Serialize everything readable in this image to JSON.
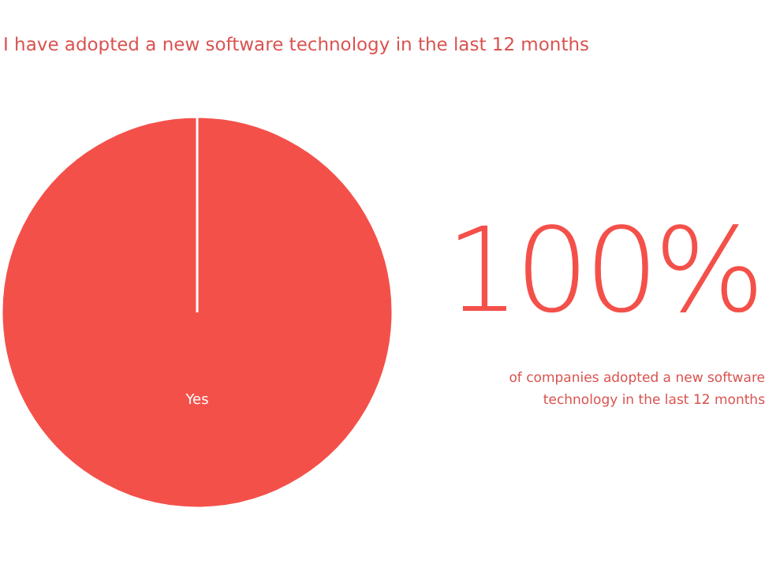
{
  "chart_data": {
    "type": "pie",
    "title": "I have adopted a new software technology in the last 12 months",
    "categories": [
      "Yes"
    ],
    "values": [
      100
    ],
    "value_labels": [
      "100%"
    ],
    "colors": [
      "#f4504a"
    ],
    "legend": false,
    "annotations": [
      "of companies adopted a new software technology in the last 12 months"
    ]
  }
}
